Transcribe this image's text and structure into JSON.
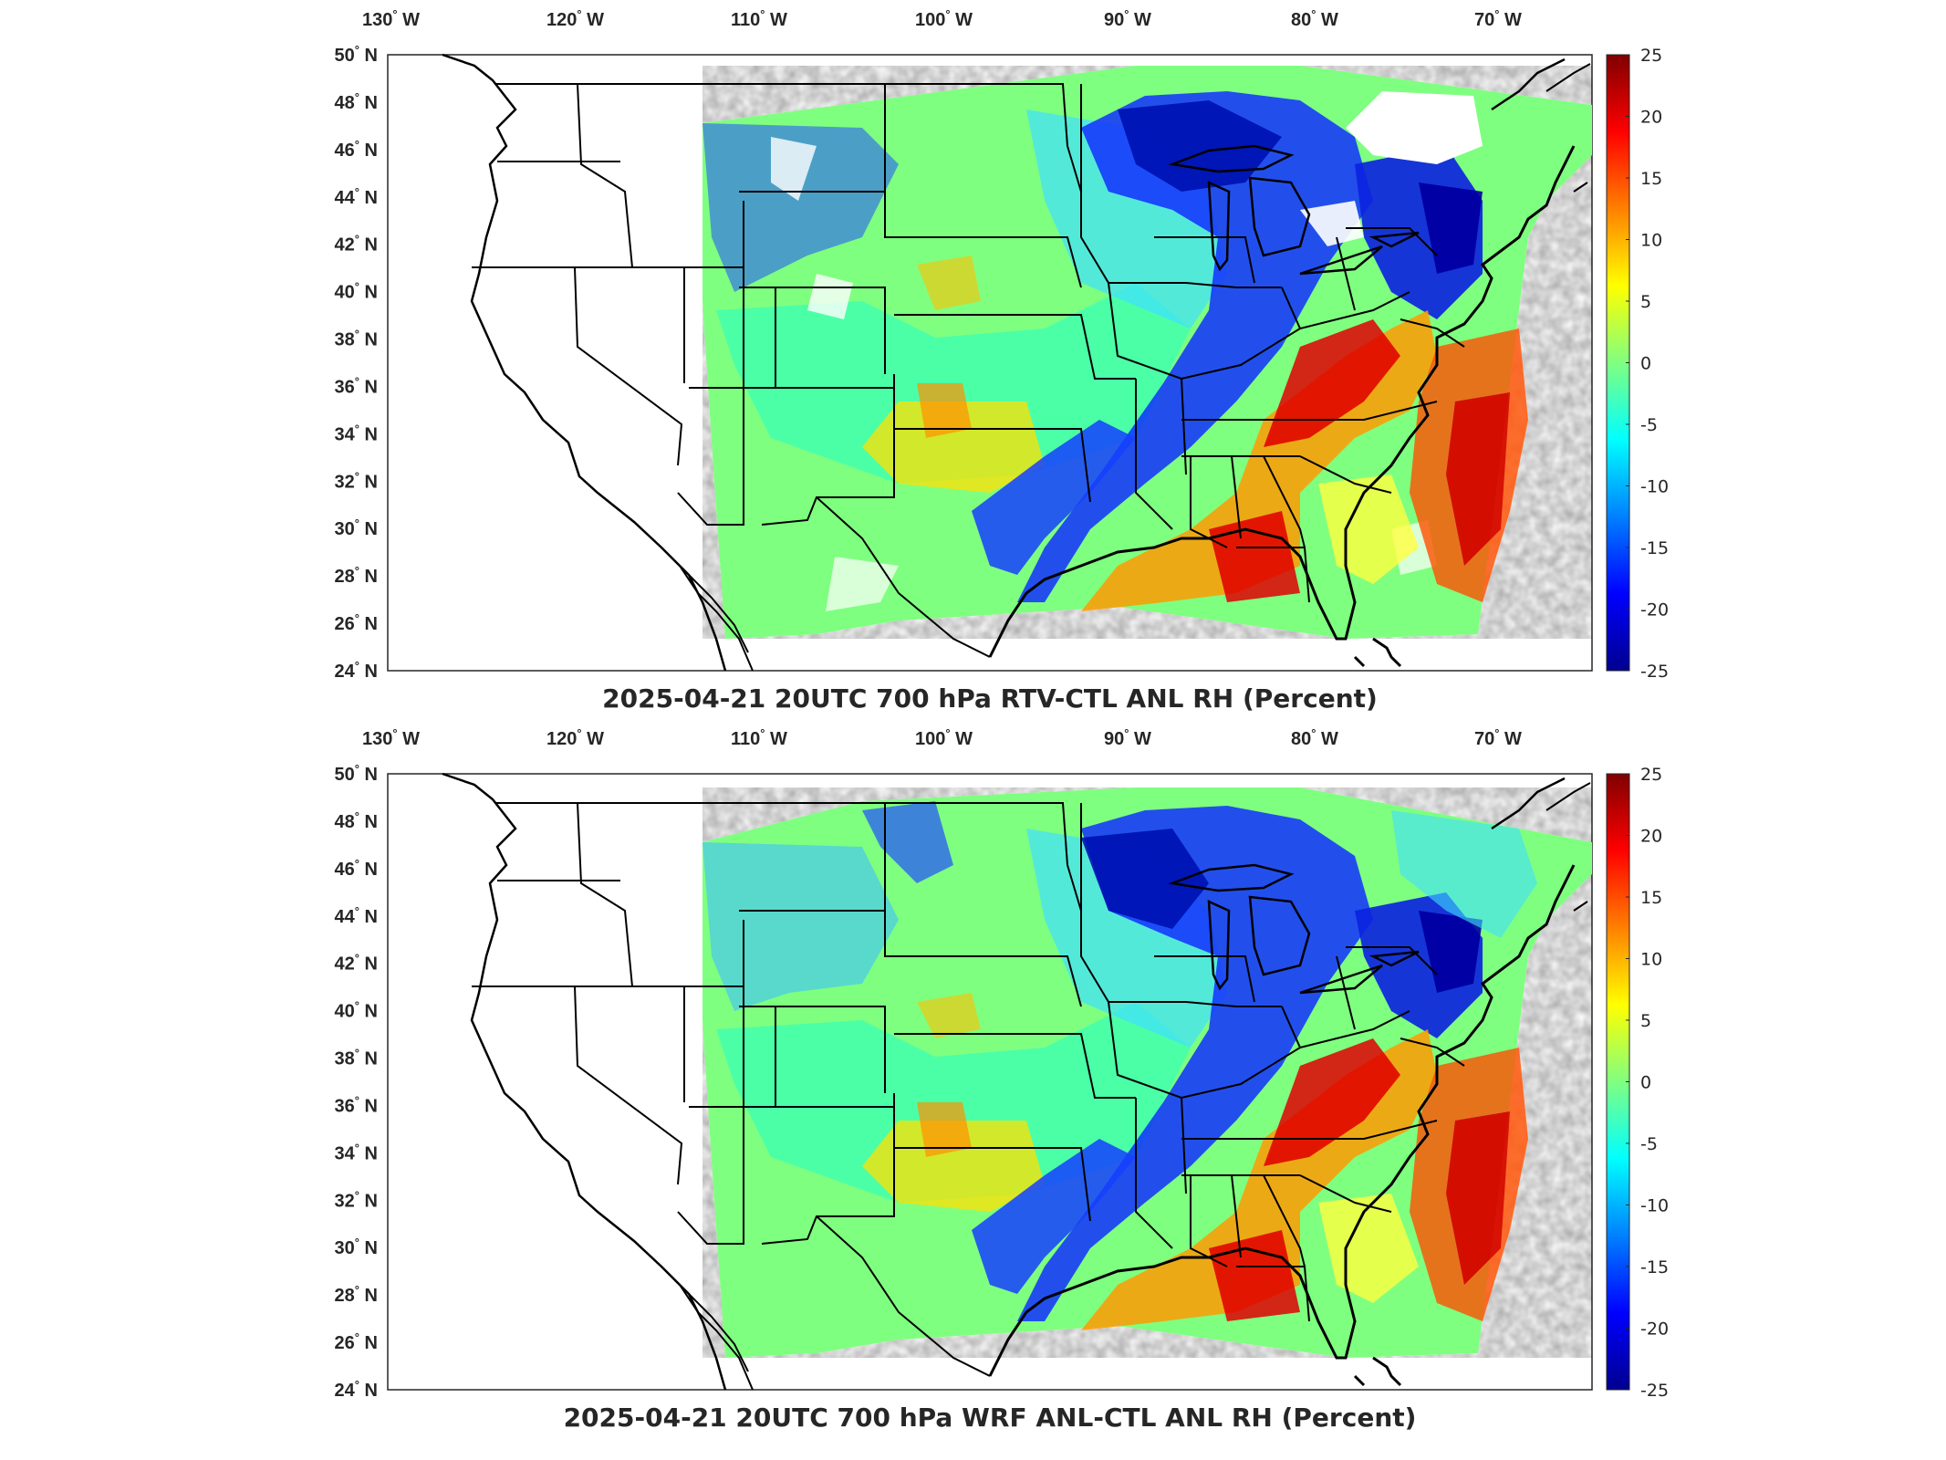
{
  "panels": [
    {
      "id": "top",
      "title": "2025-04-21 20UTC 700 hPa RTV-CTL ANL RH (Percent)",
      "lon_ticks": [
        "130",
        "120",
        "110",
        "100",
        "90",
        "80",
        "70"
      ],
      "lon_suffix": "W",
      "lat_ticks": [
        "50",
        "48",
        "46",
        "44",
        "42",
        "40",
        "38",
        "36",
        "34",
        "32",
        "30",
        "28",
        "26",
        "24"
      ],
      "lat_suffix": "N",
      "colorbar_ticks": [
        "25",
        "20",
        "15",
        "10",
        "5",
        "0",
        "-5",
        "-10",
        "-15",
        "-20",
        "-25"
      ],
      "colorbar_range": [
        -25,
        25
      ],
      "colormap": "jet"
    },
    {
      "id": "bottom",
      "title": "2025-04-21 20UTC 700 hPa WRF ANL-CTL ANL RH (Percent)",
      "lon_ticks": [
        "130",
        "120",
        "110",
        "100",
        "90",
        "80",
        "70"
      ],
      "lon_suffix": "W",
      "lat_ticks": [
        "50",
        "48",
        "46",
        "44",
        "42",
        "40",
        "38",
        "36",
        "34",
        "32",
        "30",
        "28",
        "26",
        "24"
      ],
      "lat_suffix": "N",
      "colorbar_ticks": [
        "25",
        "20",
        "15",
        "10",
        "5",
        "0",
        "-5",
        "-10",
        "-15",
        "-20",
        "-25"
      ],
      "colorbar_range": [
        -25,
        25
      ],
      "colormap": "jet"
    }
  ],
  "colors": {
    "jet": [
      "#00008f",
      "#0000ff",
      "#0080ff",
      "#00ffff",
      "#80ff80",
      "#ffff00",
      "#ff8000",
      "#ff0000",
      "#800000"
    ]
  }
}
